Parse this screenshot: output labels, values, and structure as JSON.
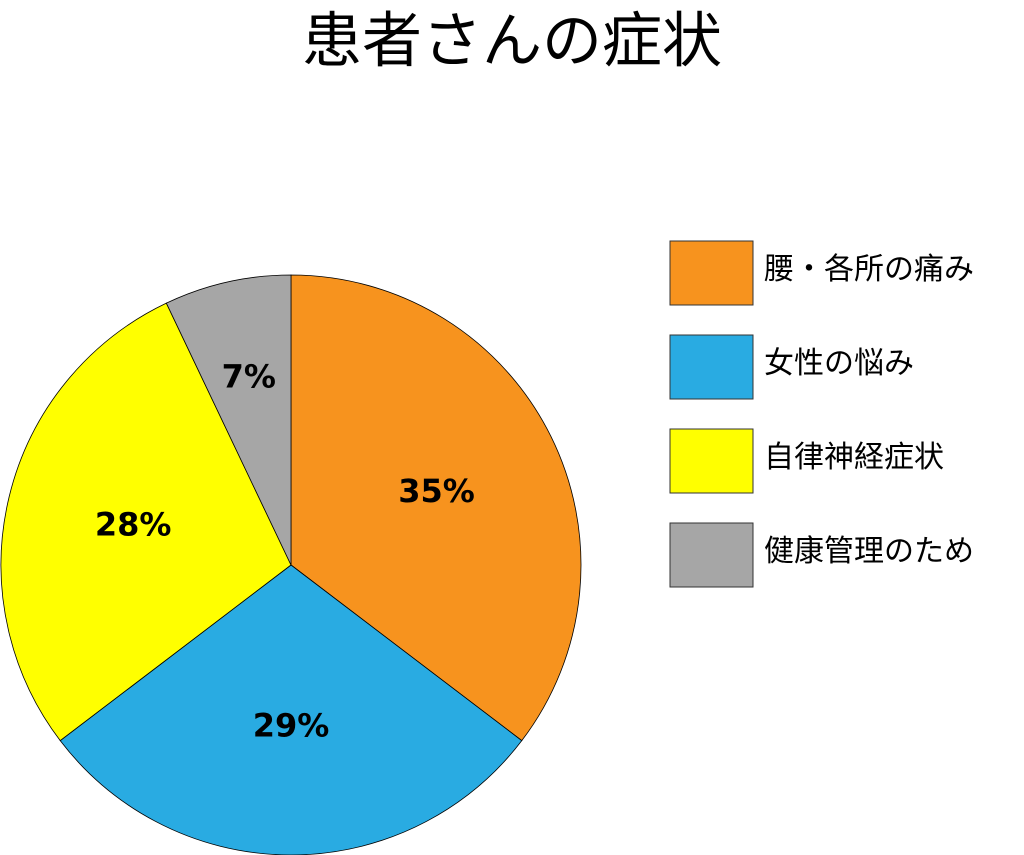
{
  "chart_data": {
    "type": "pie",
    "title": "患者さんの症状",
    "categories": [
      "腰・各所の痛み",
      "女性の悩み",
      "自律神経症状",
      "健康管理のため"
    ],
    "values": [
      35,
      29,
      28,
      7
    ],
    "value_labels": [
      "35%",
      "29%",
      "28%",
      "7%"
    ],
    "colors": [
      "#f7931e",
      "#29abe2",
      "#ffff00",
      "#a6a6a6"
    ],
    "legend": "right"
  }
}
